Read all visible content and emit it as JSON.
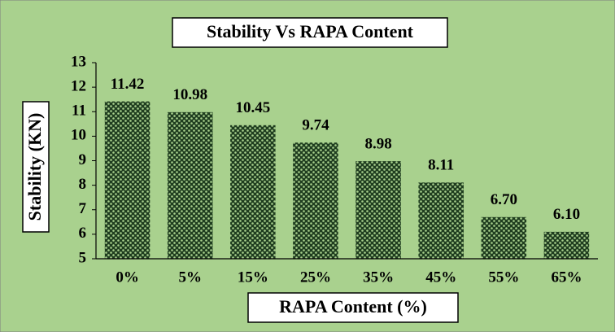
{
  "chart_data": {
    "type": "bar",
    "title": "Stability Vs RAPA Content",
    "xlabel": "RAPA Content (%)",
    "ylabel": "Stability (KN)",
    "categories": [
      "0%",
      "5%",
      "15%",
      "25%",
      "35%",
      "45%",
      "55%",
      "65%"
    ],
    "values": [
      11.42,
      10.98,
      10.45,
      9.74,
      8.98,
      8.11,
      6.7,
      6.1
    ],
    "value_labels": [
      "11.42",
      "10.98",
      "10.45",
      "9.74",
      "8.98",
      "8.11",
      "6.70",
      "6.10"
    ],
    "color": "#1f3d1f",
    "background": "#a9d18e",
    "ylim": [
      5,
      13
    ],
    "yticks": [
      5,
      6,
      7,
      8,
      9,
      10,
      11,
      12,
      13
    ]
  }
}
